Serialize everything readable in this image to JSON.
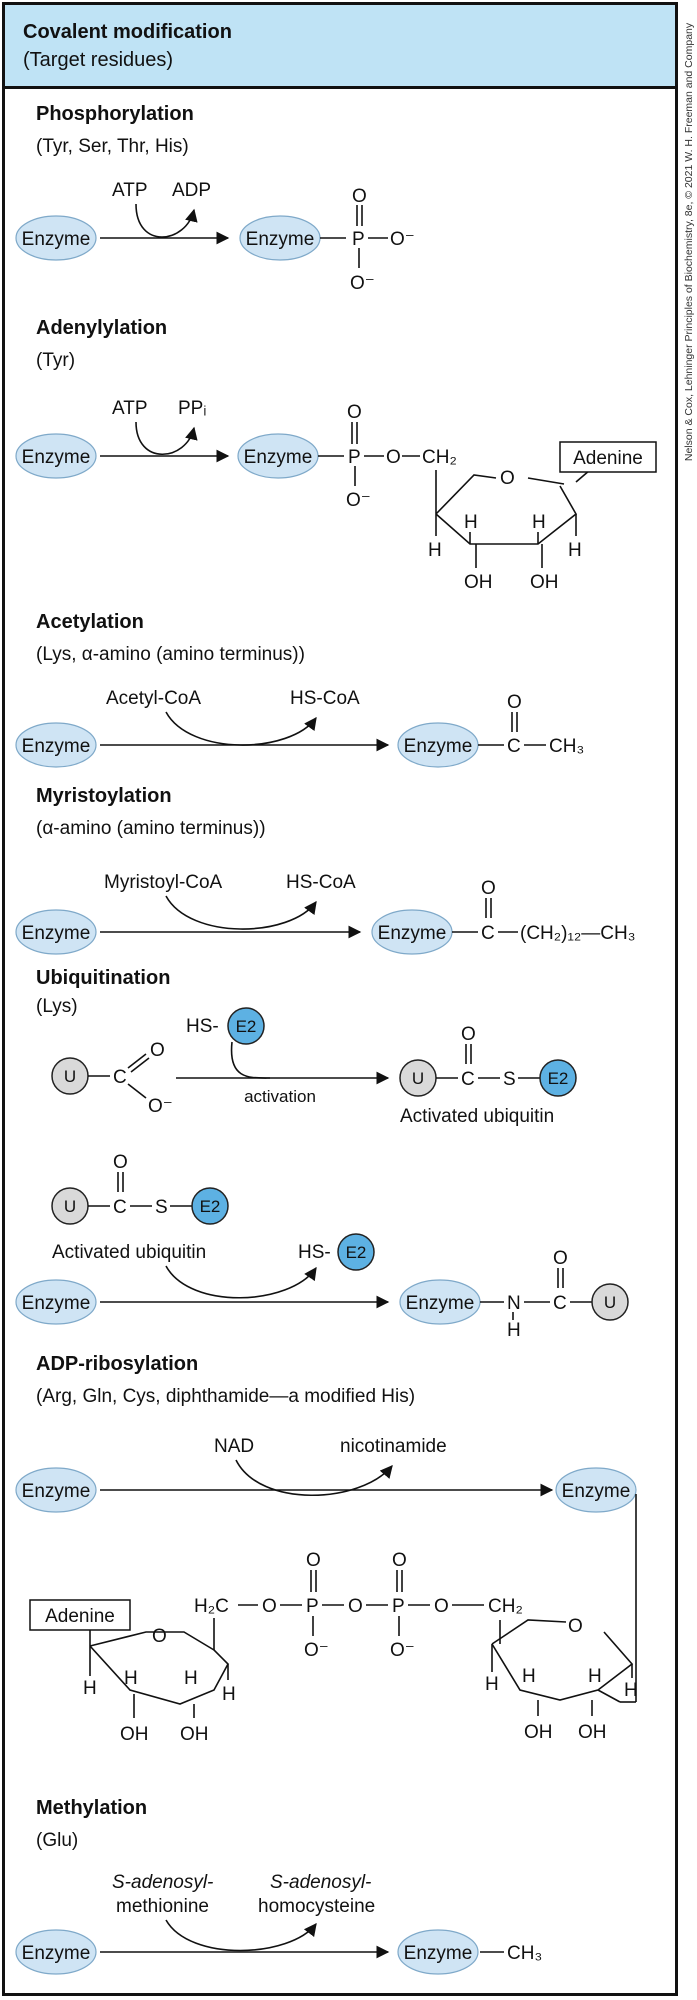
{
  "header": {
    "title": "Covalent modification",
    "subtitle": "(Target residues)"
  },
  "credit": "Nelson & Cox, Lehninger Principles of Biochemistry, 8e, © 2021 W. H. Freeman and Company",
  "colors": {
    "header_bg": "#bfe3f5",
    "enzyme_fill": "#cfe4f4",
    "e2_fill": "#5db1e3",
    "ubiquitin_fill": "#d9d9d9"
  },
  "labels": {
    "enzyme": "Enzyme",
    "adenine": "Adenine",
    "u": "U",
    "e2": "E2",
    "O": "O",
    "P": "P",
    "C": "C",
    "S": "S",
    "N": "N",
    "H": "H",
    "OH": "OH",
    "Ominus": "O⁻",
    "ch3": "CH₃",
    "ch2": "CH₂",
    "h2c": "H₂C",
    "hs": "HS-",
    "dash": "–"
  },
  "phosphorylation": {
    "title": "Phosphorylation",
    "residues": "(Tyr, Ser, Thr, His)",
    "reactant": "ATP",
    "product": "ADP"
  },
  "adenylylation": {
    "title": "Adenylylation",
    "residues": "(Tyr)",
    "reactant": "ATP",
    "product": "PPᵢ"
  },
  "acetylation": {
    "title": "Acetylation",
    "residues": "(Lys, α-amino (amino terminus))",
    "reactant": "Acetyl-CoA",
    "product": "HS-CoA"
  },
  "myristoylation": {
    "title": "Myristoylation",
    "residues": "(α-amino (amino terminus))",
    "reactant": "Myristoyl-CoA",
    "product": "HS-CoA",
    "chain": "(CH₂)₁₂—CH₃"
  },
  "ubiquitination": {
    "title": "Ubiquitination",
    "residues": "(Lys)",
    "activation": "activation",
    "activated": "Activated ubiquitin"
  },
  "adp_ribosylation": {
    "title": "ADP-ribosylation",
    "residues": "(Arg, Gln, Cys, diphthamide—a modified His)",
    "reactant": "NAD",
    "product": "nicotinamide"
  },
  "methylation": {
    "title": "Methylation",
    "residues": "(Glu)",
    "reactant_line1": "S-adenosyl-",
    "reactant_line2": "methionine",
    "product_line1": "S-adenosyl-",
    "product_line2": "homocysteine"
  }
}
